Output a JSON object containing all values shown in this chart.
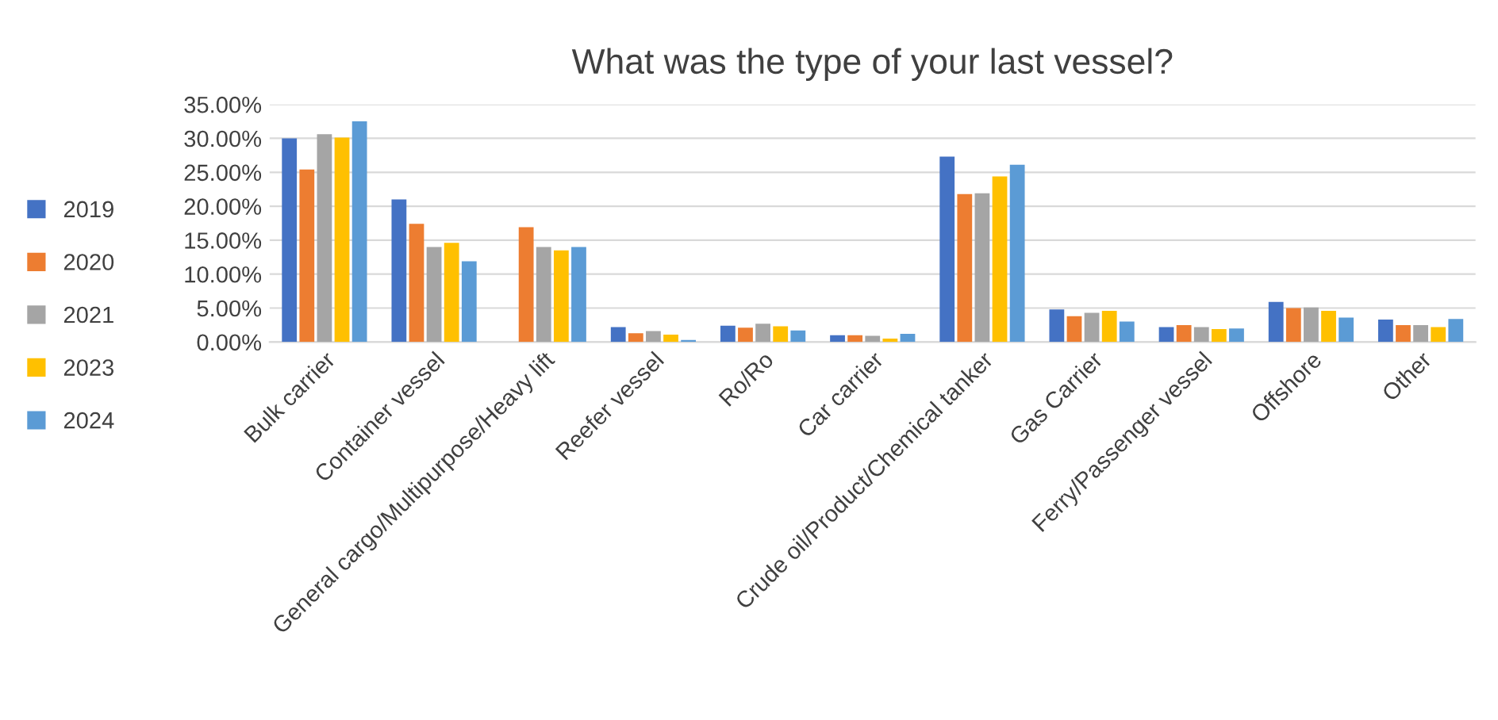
{
  "chart_data": {
    "type": "bar",
    "title": "What was the type of your last vessel?",
    "categories": [
      "Bulk carrier",
      "Container vessel",
      "General cargo/Multipurpose/Heavy lift",
      "Reefer vessel",
      "Ro/Ro",
      "Car carrier",
      "Crude oil/Product/Chemical tanker",
      "Gas Carrier",
      "Ferry/Passenger vessel",
      "Offshore",
      "Other"
    ],
    "series": [
      {
        "name": "2019",
        "color": "#4472c4",
        "values": [
          30.0,
          21.0,
          null,
          2.2,
          2.4,
          1.0,
          27.3,
          4.8,
          2.2,
          5.9,
          3.3
        ]
      },
      {
        "name": "2020",
        "color": "#ed7d31",
        "values": [
          25.4,
          17.4,
          16.9,
          1.3,
          2.1,
          1.0,
          21.8,
          3.8,
          2.5,
          5.0,
          2.5
        ]
      },
      {
        "name": "2021",
        "color": "#a5a5a5",
        "values": [
          30.6,
          14.0,
          14.0,
          1.6,
          2.7,
          0.9,
          21.9,
          4.3,
          2.2,
          5.1,
          2.5
        ]
      },
      {
        "name": "2023",
        "color": "#ffc000",
        "values": [
          30.1,
          14.6,
          13.5,
          1.1,
          2.3,
          0.5,
          24.4,
          4.6,
          1.9,
          4.6,
          2.2
        ]
      },
      {
        "name": "2024",
        "color": "#5b9bd5",
        "values": [
          32.5,
          11.9,
          14.0,
          0.3,
          1.7,
          1.2,
          26.1,
          3.0,
          2.0,
          3.6,
          3.4
        ]
      }
    ],
    "ylim": [
      0,
      35
    ],
    "yticks": [
      {
        "value": 0,
        "label": "0.00%"
      },
      {
        "value": 5,
        "label": "5.00%"
      },
      {
        "value": 10,
        "label": "10.00%"
      },
      {
        "value": 15,
        "label": "15.00%"
      },
      {
        "value": 20,
        "label": "20.00%"
      },
      {
        "value": 25,
        "label": "25.00%"
      },
      {
        "value": 30,
        "label": "30.00%"
      },
      {
        "value": 35,
        "label": "35.00%"
      }
    ],
    "grid": "y",
    "legend": "left"
  }
}
